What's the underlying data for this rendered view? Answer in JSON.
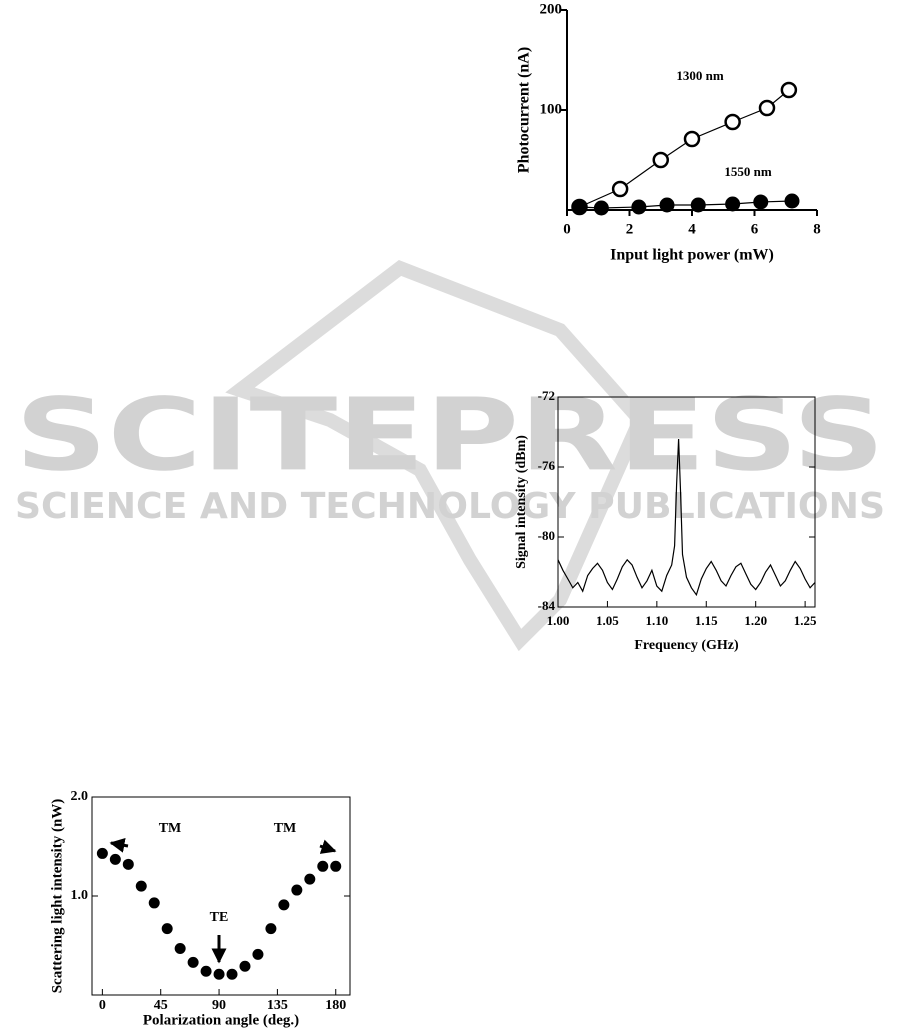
{
  "watermark": {
    "brand": "SCITEPRESS",
    "tagline": "SCIENCE AND TECHNOLOGY PUBLICATIONS"
  },
  "chart_data": [
    {
      "type": "line",
      "frame": "axes",
      "xlabel": "Input  light power  (mW)",
      "ylabel": "Photocurrent  (nA)",
      "xlim": [
        0,
        8
      ],
      "xticks": [
        0,
        2,
        4,
        6,
        8
      ],
      "ylim": [
        0,
        200
      ],
      "yticks": [
        100,
        200
      ],
      "line": true,
      "series": [
        {
          "name": "1300 nm",
          "color": "#000000",
          "marker": "open",
          "x": [
            0.4,
            1.7,
            3.0,
            4.0,
            5.3,
            6.4,
            7.1
          ],
          "values": [
            3,
            21,
            50,
            71,
            88,
            102,
            120
          ]
        },
        {
          "name": "1550 nm",
          "color": "#000000",
          "marker": "filled",
          "x": [
            0.4,
            1.1,
            2.3,
            3.2,
            4.2,
            5.3,
            6.2,
            7.2
          ],
          "values": [
            3,
            2,
            3,
            5,
            5,
            6,
            8,
            9
          ]
        }
      ]
    },
    {
      "type": "line",
      "frame": "box",
      "xlabel": "Frequency (GHz)",
      "ylabel": "Signal intensity (dBm)",
      "xlim": [
        1.0,
        1.26
      ],
      "xticks": [
        {
          "value": 1.0,
          "label": "1.00"
        },
        1.05,
        {
          "value": 1.1,
          "label": "1.10"
        },
        1.15,
        {
          "value": 1.2,
          "label": "1.20"
        },
        1.25
      ],
      "ylim": [
        -84,
        -72
      ],
      "yticks": [
        -72,
        -76,
        -80,
        -84
      ],
      "line": true,
      "color": "#000000",
      "x": [
        1.0,
        1.005,
        1.01,
        1.015,
        1.02,
        1.025,
        1.03,
        1.035,
        1.04,
        1.045,
        1.05,
        1.055,
        1.06,
        1.065,
        1.07,
        1.075,
        1.08,
        1.085,
        1.09,
        1.095,
        1.1,
        1.105,
        1.11,
        1.115,
        1.118,
        1.12,
        1.122,
        1.124,
        1.126,
        1.13,
        1.135,
        1.14,
        1.145,
        1.15,
        1.155,
        1.16,
        1.165,
        1.17,
        1.175,
        1.18,
        1.185,
        1.19,
        1.195,
        1.2,
        1.205,
        1.21,
        1.215,
        1.22,
        1.225,
        1.23,
        1.235,
        1.24,
        1.245,
        1.25,
        1.255,
        1.26
      ],
      "values": [
        -81.3,
        -81.9,
        -82.4,
        -82.9,
        -82.6,
        -83.1,
        -82.2,
        -81.8,
        -81.5,
        -81.9,
        -82.6,
        -83.0,
        -82.4,
        -81.7,
        -81.3,
        -81.6,
        -82.3,
        -82.9,
        -82.5,
        -81.9,
        -82.8,
        -83.1,
        -82.2,
        -81.6,
        -80.5,
        -77.0,
        -74.4,
        -77.5,
        -81.0,
        -82.3,
        -82.9,
        -83.3,
        -82.4,
        -81.8,
        -81.4,
        -81.9,
        -82.5,
        -82.8,
        -82.2,
        -81.7,
        -81.5,
        -82.1,
        -82.7,
        -83.0,
        -82.6,
        -82.0,
        -81.6,
        -82.2,
        -82.8,
        -82.5,
        -81.9,
        -81.4,
        -81.8,
        -82.4,
        -82.9,
        -82.6
      ]
    },
    {
      "type": "scatter",
      "frame": "box",
      "xlabel": "Polarization angle (deg.)",
      "ylabel": "Scattering light intensity  (nW)",
      "xlim": [
        -8,
        191
      ],
      "xticks": [
        0,
        45,
        90,
        135,
        180
      ],
      "ylim": [
        0,
        2.0
      ],
      "yticks": [
        {
          "value": 1.0,
          "label": "1.0"
        },
        {
          "value": 2.0,
          "label": "2.0"
        }
      ],
      "color": "#000000",
      "marker": "filled",
      "annotations": [
        "TM",
        "TM",
        "TE"
      ],
      "x": [
        0,
        10,
        20,
        30,
        40,
        50,
        60,
        70,
        80,
        90,
        100,
        110,
        120,
        130,
        140,
        150,
        160,
        170,
        180
      ],
      "values": [
        1.43,
        1.37,
        1.32,
        1.1,
        0.93,
        0.67,
        0.47,
        0.33,
        0.24,
        0.21,
        0.21,
        0.29,
        0.41,
        0.67,
        0.91,
        1.06,
        1.17,
        1.3,
        1.3
      ]
    }
  ]
}
